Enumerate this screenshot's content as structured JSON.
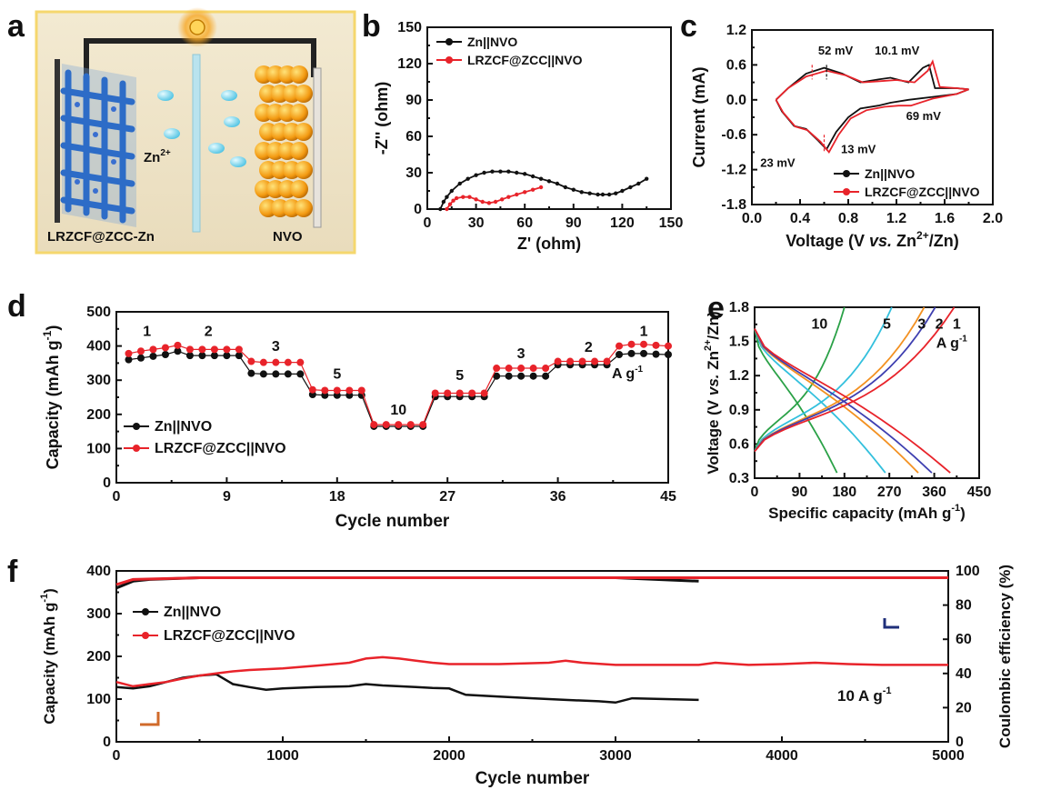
{
  "panel_labels": {
    "a": "a",
    "b": "b",
    "c": "c",
    "d": "d",
    "e": "e",
    "f": "f"
  },
  "schematic": {
    "left_label": "LRZCF@ZCC-Zn",
    "right_label": "NVO",
    "ion_label": "Zn",
    "ion_charge": "2+"
  },
  "chart_data": [
    {
      "panel": "b",
      "type": "line",
      "xlabel": "Z' (ohm)",
      "ylabel": "-Z'' (ohm)",
      "xlim": [
        0,
        150
      ],
      "ylim": [
        0,
        150
      ],
      "xticks": [
        "0",
        "30",
        "60",
        "90",
        "120",
        "150"
      ],
      "yticks": [
        "0",
        "30",
        "60",
        "90",
        "120",
        "150"
      ],
      "legend_position": "top-left",
      "series": [
        {
          "name": "Zn||NVO",
          "color": "#111111",
          "x": [
            8,
            10,
            12,
            15,
            20,
            25,
            30,
            35,
            40,
            45,
            50,
            55,
            60,
            65,
            70,
            75,
            80,
            85,
            90,
            95,
            100,
            105,
            108,
            112,
            116,
            120,
            125,
            130,
            135
          ],
          "y": [
            0,
            6,
            10,
            15,
            21,
            25,
            28,
            30,
            31,
            31,
            31,
            30,
            29,
            27,
            25,
            23,
            21,
            18,
            16,
            14,
            13,
            12,
            12,
            12,
            13,
            15,
            18,
            21,
            25
          ]
        },
        {
          "name": "LRZCF@ZCC||NVO",
          "color": "#e8232a",
          "x": [
            12,
            14,
            16,
            18,
            22,
            26,
            30,
            34,
            38,
            42,
            46,
            50,
            55,
            60,
            65,
            70
          ],
          "y": [
            0,
            4,
            7,
            9,
            10,
            10,
            8,
            6,
            5,
            6,
            8,
            10,
            12,
            14,
            16,
            18
          ]
        }
      ]
    },
    {
      "panel": "c",
      "type": "line",
      "xlabel": "Voltage (V vs. Zn2+/Zn)",
      "xlabel_parts": {
        "pre": "Voltage (V ",
        "vs": "vs.",
        "mid": " Zn",
        "sup": "2+",
        "post": "/Zn)"
      },
      "ylabel": "Current (mA)",
      "xlim": [
        0.0,
        2.0
      ],
      "ylim": [
        -1.8,
        1.2
      ],
      "xticks": [
        "0.0",
        "0.4",
        "0.8",
        "1.2",
        "1.6",
        "2.0"
      ],
      "yticks": [
        "-1.8",
        "-1.2",
        "-0.6",
        "0.0",
        "0.6",
        "1.2"
      ],
      "legend_position": "bottom-right",
      "annotations": [
        "52 mV",
        "10.1 mV",
        "69 mV",
        "13 mV",
        "23 mV"
      ],
      "series": [
        {
          "name": "Zn||NVO",
          "color": "#111111",
          "x": [
            0.2,
            0.3,
            0.45,
            0.6,
            0.75,
            0.9,
            1.05,
            1.15,
            1.3,
            1.42,
            1.47,
            1.52,
            1.7,
            1.8,
            1.7,
            1.5,
            1.3,
            1.15,
            1.05,
            0.9,
            0.8,
            0.7,
            0.62,
            0.55,
            0.45,
            0.35,
            0.25,
            0.2
          ],
          "y": [
            0.0,
            0.2,
            0.45,
            0.55,
            0.45,
            0.3,
            0.35,
            0.38,
            0.3,
            0.55,
            0.6,
            0.2,
            0.2,
            0.18,
            0.1,
            0.05,
            0.0,
            -0.05,
            -0.1,
            -0.15,
            -0.3,
            -0.55,
            -0.85,
            -0.7,
            -0.5,
            -0.45,
            -0.2,
            0.0
          ]
        },
        {
          "name": "LRZCF@ZCC||NVO",
          "color": "#e8232a",
          "x": [
            0.2,
            0.3,
            0.45,
            0.62,
            0.78,
            0.92,
            1.06,
            1.2,
            1.35,
            1.46,
            1.5,
            1.56,
            1.7,
            1.8,
            1.7,
            1.5,
            1.32,
            1.22,
            1.1,
            0.95,
            0.82,
            0.72,
            0.64,
            0.57,
            0.46,
            0.36,
            0.26,
            0.2
          ],
          "y": [
            0.0,
            0.2,
            0.4,
            0.5,
            0.42,
            0.3,
            0.32,
            0.34,
            0.3,
            0.5,
            0.66,
            0.22,
            0.2,
            0.18,
            0.1,
            0.02,
            -0.1,
            -0.1,
            -0.12,
            -0.18,
            -0.32,
            -0.6,
            -0.9,
            -0.72,
            -0.52,
            -0.46,
            -0.22,
            0.0
          ]
        }
      ]
    },
    {
      "panel": "d",
      "type": "scatter",
      "xlabel": "Cycle number",
      "ylabel": "Capacity (mAh g-1)",
      "ylabel_parts": {
        "pre": "Capacity (mAh g",
        "sup": "-1",
        "post": ")"
      },
      "xlim": [
        0,
        45
      ],
      "ylim": [
        0,
        500
      ],
      "xticks": [
        "0",
        "9",
        "18",
        "27",
        "36",
        "45"
      ],
      "yticks": [
        "0",
        "100",
        "200",
        "300",
        "400",
        "500"
      ],
      "legend_position": "middle-left",
      "rate_labels": [
        {
          "text": "1",
          "x": 2.5,
          "y": 430
        },
        {
          "text": "2",
          "x": 7.5,
          "y": 430
        },
        {
          "text": "3",
          "x": 13,
          "y": 385
        },
        {
          "text": "5",
          "x": 18,
          "y": 305
        },
        {
          "text": "10",
          "x": 23,
          "y": 200
        },
        {
          "text": "5",
          "x": 28,
          "y": 300
        },
        {
          "text": "3",
          "x": 33,
          "y": 365
        },
        {
          "text": "2",
          "x": 38.5,
          "y": 383
        },
        {
          "text": "1",
          "x": 43,
          "y": 430
        }
      ],
      "unit_label": {
        "pre": "A g",
        "sup": "-1"
      },
      "x": [
        1,
        2,
        3,
        4,
        5,
        6,
        7,
        8,
        9,
        10,
        11,
        12,
        13,
        14,
        15,
        16,
        17,
        18,
        19,
        20,
        21,
        22,
        23,
        24,
        25,
        26,
        27,
        28,
        29,
        30,
        31,
        32,
        33,
        34,
        35,
        36,
        37,
        38,
        39,
        40,
        41,
        42,
        43,
        44,
        45
      ],
      "series": [
        {
          "name": "Zn||NVO",
          "color": "#111111",
          "values": [
            360,
            365,
            370,
            375,
            385,
            372,
            372,
            372,
            372,
            372,
            320,
            318,
            318,
            318,
            318,
            258,
            256,
            256,
            256,
            256,
            165,
            165,
            165,
            165,
            165,
            252,
            252,
            252,
            252,
            252,
            312,
            312,
            312,
            312,
            312,
            345,
            345,
            345,
            345,
            345,
            375,
            378,
            378,
            376,
            375
          ]
        },
        {
          "name": "LRZCF@ZCC||NVO",
          "color": "#e8232a",
          "values": [
            378,
            385,
            390,
            395,
            402,
            390,
            390,
            390,
            390,
            390,
            355,
            352,
            352,
            352,
            352,
            272,
            270,
            270,
            270,
            270,
            170,
            170,
            170,
            170,
            170,
            262,
            262,
            262,
            262,
            262,
            335,
            335,
            335,
            335,
            335,
            355,
            355,
            355,
            355,
            355,
            400,
            405,
            405,
            402,
            400
          ]
        }
      ]
    },
    {
      "panel": "e",
      "type": "line",
      "xlabel": "Specific capacity (mAh g-1)",
      "xlabel_parts": {
        "pre": "Specific capacity (mAh g",
        "sup": "-1",
        "post": ")"
      },
      "ylabel": "Voltage (V vs. Zn2+/Zn)",
      "ylabel_parts": {
        "pre": "Voltage (V ",
        "vs": "vs.",
        "mid": " Zn",
        "sup": "2+",
        "post": "/Zn)"
      },
      "xlim": [
        0,
        450
      ],
      "ylim": [
        0.2,
        1.8
      ],
      "xticks": [
        "0",
        "90",
        "180",
        "270",
        "360",
        "450"
      ],
      "yticks": [
        "0.3",
        "0.6",
        "0.9",
        "1.2",
        "1.5",
        "1.8"
      ],
      "rate_labels": [
        {
          "text": "10",
          "x": 130,
          "y": 1.6
        },
        {
          "text": "5",
          "x": 265,
          "y": 1.6
        },
        {
          "text": "3",
          "x": 335,
          "y": 1.6
        },
        {
          "text": "2",
          "x": 370,
          "y": 1.6
        },
        {
          "text": "1",
          "x": 405,
          "y": 1.6
        }
      ],
      "unit_label": {
        "pre": "A g",
        "sup": "-1"
      },
      "series": [
        {
          "name": "10",
          "color": "#2aa147",
          "charge_end": 180,
          "discharge_end": 165
        },
        {
          "name": "5",
          "color": "#33c0dd",
          "charge_end": 275,
          "discharge_end": 262
        },
        {
          "name": "3",
          "color": "#f39121",
          "charge_end": 340,
          "discharge_end": 328
        },
        {
          "name": "2",
          "color": "#3e3fb0",
          "charge_end": 362,
          "discharge_end": 355
        },
        {
          "name": "1",
          "color": "#e8232a",
          "charge_end": 400,
          "discharge_end": 392
        }
      ]
    },
    {
      "panel": "f",
      "type": "scatter",
      "xlabel": "Cycle number",
      "ylabel": "Capacity (mAh g-1)",
      "ylabel_parts": {
        "pre": "Capacity (mAh g",
        "sup": "-1",
        "post": ")"
      },
      "y2label": "Coulombic efficiency (%)",
      "xlim": [
        0,
        5000
      ],
      "ylim": [
        0,
        400
      ],
      "y2lim": [
        0,
        100
      ],
      "xticks": [
        "0",
        "1000",
        "2000",
        "3000",
        "4000",
        "5000"
      ],
      "yticks": [
        "0",
        "100",
        "200",
        "300",
        "400"
      ],
      "y2ticks": [
        "0",
        "20",
        "40",
        "60",
        "80",
        "100"
      ],
      "legend_position": "top-left",
      "condition_label": {
        "pre": "10 A g",
        "sup": "-1"
      },
      "series": [
        {
          "name": "Zn||NVO",
          "color": "#111111",
          "axis": "left",
          "x": [
            0,
            100,
            200,
            300,
            400,
            500,
            600,
            700,
            800,
            900,
            1000,
            1200,
            1400,
            1500,
            1600,
            1700,
            1800,
            1900,
            2000,
            2100,
            2300,
            2500,
            2700,
            2900,
            3000,
            3100,
            3300,
            3500
          ],
          "values": [
            128,
            125,
            130,
            140,
            150,
            155,
            158,
            135,
            128,
            122,
            125,
            128,
            130,
            135,
            132,
            130,
            128,
            126,
            125,
            110,
            106,
            102,
            98,
            95,
            92,
            102,
            100,
            98
          ]
        },
        {
          "name": "LRZCF@ZCC||NVO",
          "color": "#e8232a",
          "axis": "left",
          "x": [
            0,
            100,
            200,
            300,
            400,
            500,
            600,
            700,
            800,
            1000,
            1200,
            1400,
            1500,
            1600,
            1700,
            1800,
            1900,
            2000,
            2300,
            2600,
            2700,
            2800,
            3000,
            3300,
            3500,
            3600,
            3800,
            4000,
            4200,
            4400,
            4600,
            4800,
            5000
          ],
          "values": [
            140,
            130,
            135,
            140,
            148,
            155,
            160,
            165,
            168,
            172,
            178,
            185,
            195,
            198,
            195,
            190,
            185,
            182,
            182,
            185,
            190,
            185,
            180,
            180,
            180,
            185,
            180,
            182,
            185,
            182,
            180,
            180,
            180
          ]
        },
        {
          "name": "Zn||NVO CE",
          "color": "#111111",
          "axis": "right",
          "x": [
            0,
            100,
            200,
            500,
            1000,
            2000,
            3000,
            3500
          ],
          "values": [
            90,
            94,
            95,
            96,
            96,
            96,
            96,
            94
          ]
        },
        {
          "name": "LRZCF@ZCC||NVO CE",
          "color": "#e8232a",
          "axis": "right",
          "x": [
            0,
            100,
            500,
            1000,
            2000,
            3000,
            4000,
            5000
          ],
          "values": [
            92,
            95,
            96,
            96,
            96,
            96,
            96,
            96
          ]
        }
      ]
    }
  ]
}
